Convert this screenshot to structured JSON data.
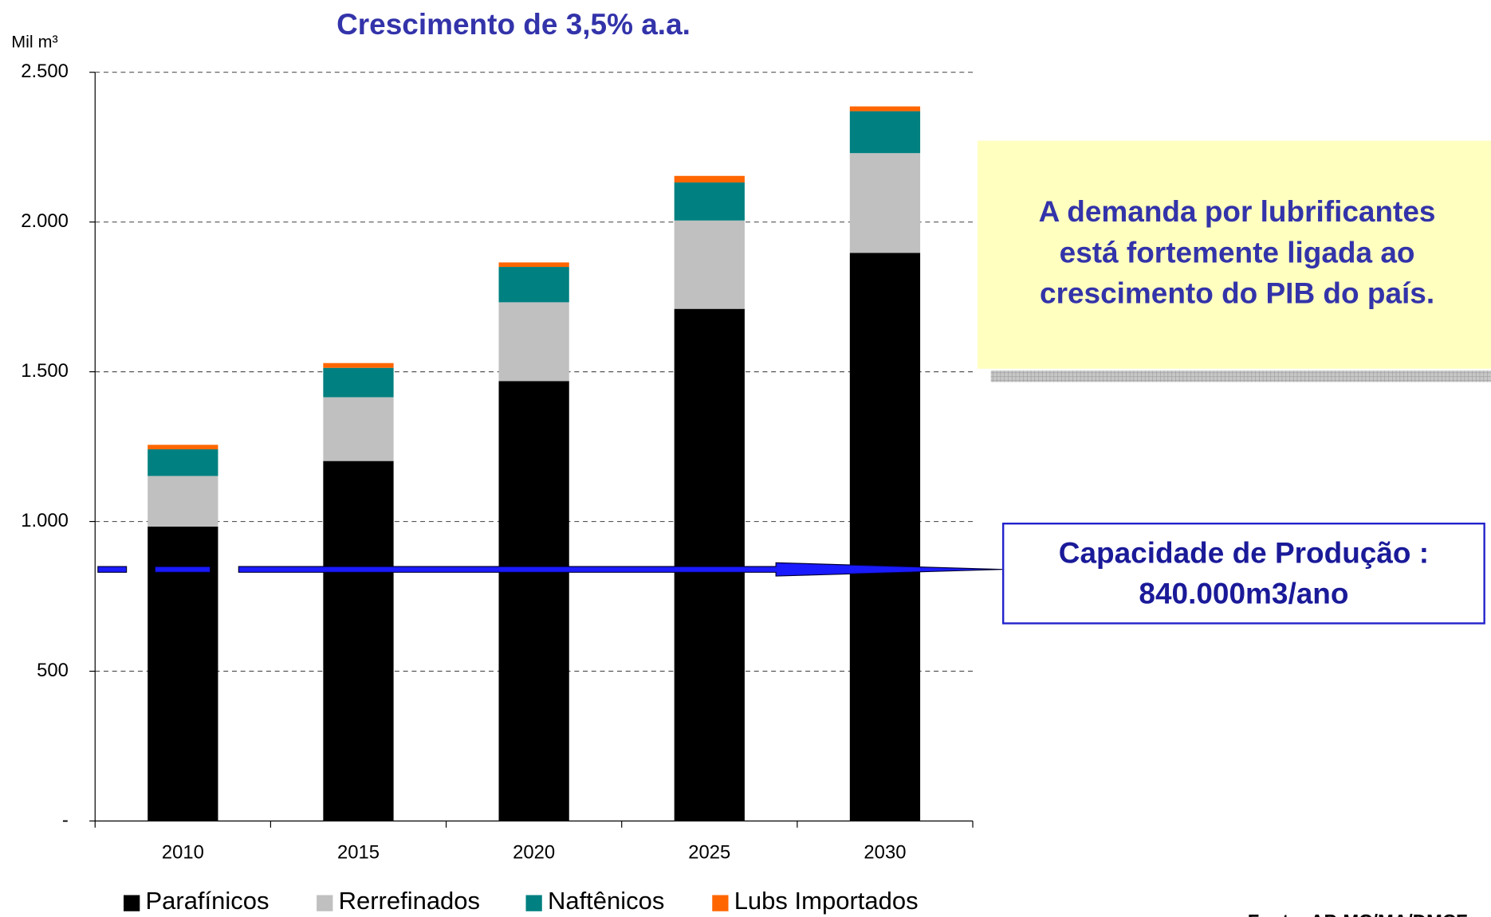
{
  "chart_data": {
    "type": "stacked_bar",
    "title": "Crescimento de 3,5% a.a.",
    "y_label": "Mil m³",
    "categories": [
      "2010",
      "2015",
      "2020",
      "2025",
      "2030"
    ],
    "series": [
      {
        "name": "Parafínicos",
        "color": "#000000",
        "values": [
          983,
          1202,
          1469,
          1710,
          1897
        ]
      },
      {
        "name": "Rerrefinados",
        "color": "#c0c0c0",
        "values": [
          169,
          213,
          263,
          295,
          333
        ]
      },
      {
        "name": "Naftênicos",
        "color": "#008080",
        "values": [
          89,
          98,
          118,
          127,
          140
        ]
      },
      {
        "name": "Lubs Importados",
        "color": "#ff6600",
        "values": [
          15,
          16,
          15,
          22,
          16
        ]
      }
    ],
    "ylim": [
      0,
      2500
    ],
    "yticks": [
      {
        "value": 0,
        "label": "-"
      },
      500,
      {
        "value": 1000,
        "label": "1.000"
      },
      {
        "value": 1500,
        "label": "1.500"
      },
      {
        "value": 2000,
        "label": "2.000"
      },
      {
        "value": 2500,
        "label": "2.500"
      }
    ],
    "grid": true,
    "legend": "bottom",
    "capacity": 840,
    "note_lines": [
      "A demanda por lubrificantes",
      "está fortemente ligada ao",
      "crescimento do PIB do país."
    ],
    "capacity_lines": [
      "Capacidade de Produção :",
      "840.000m3/ano"
    ],
    "source": "Fonte: AP-MC/MA/DMCF"
  }
}
